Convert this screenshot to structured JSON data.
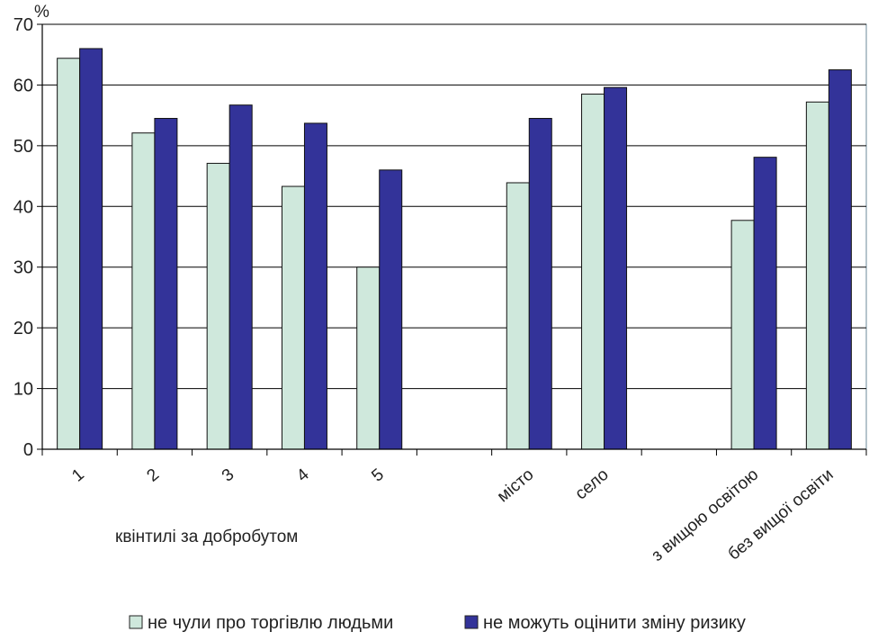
{
  "chart_data": {
    "type": "bar",
    "ylabel": "%",
    "ylim": [
      0,
      70
    ],
    "yticks": [
      0,
      10,
      20,
      30,
      40,
      50,
      60,
      70
    ],
    "grid": true,
    "legend_position": "bottom",
    "categories": [
      "1",
      "2",
      "3",
      "4",
      "5",
      "",
      "місто",
      "село",
      "",
      "з вищою освітою",
      "без вищої освіти"
    ],
    "series": [
      {
        "name": "не чули про торгівлю людьми",
        "color": "#cfe8dc",
        "values": [
          64.4,
          52.1,
          47.1,
          43.3,
          30.0,
          null,
          43.9,
          58.5,
          null,
          37.7,
          57.2
        ]
      },
      {
        "name": "не можуть оцінити зміну ризику",
        "color": "#333399",
        "values": [
          66.0,
          54.5,
          56.7,
          53.7,
          46.0,
          null,
          54.5,
          59.6,
          null,
          48.1,
          62.5
        ]
      }
    ],
    "annotations": [
      "квінтилі за добробутом"
    ]
  }
}
